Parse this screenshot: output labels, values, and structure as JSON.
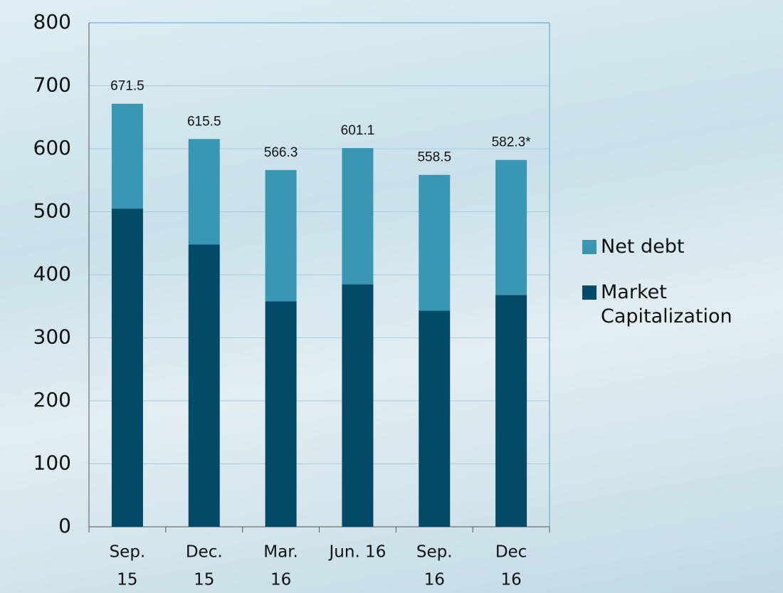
{
  "chart_data": {
    "type": "stacked_bar",
    "categories": [
      [
        "Sep.",
        "15"
      ],
      [
        "Dec.",
        "15"
      ],
      [
        "Mar.",
        "16"
      ],
      [
        "Jun. 16"
      ],
      [
        "Sep.",
        "16"
      ],
      [
        "Dec",
        "16"
      ]
    ],
    "series": [
      {
        "name": "Market Capitalization",
        "color": "#024a68",
        "values": [
          505,
          448,
          358,
          385,
          343,
          368
        ]
      },
      {
        "name": "Net debt",
        "color": "#3a97b3",
        "values": [
          166.5,
          167.5,
          208.3,
          216.1,
          215.5,
          214.3
        ]
      }
    ],
    "total_labels": [
      "671.5",
      "615.5",
      "566.3",
      "601.1",
      "558.5",
      "582.3*"
    ],
    "ylim": [
      0,
      800
    ],
    "yticks": [
      0,
      100,
      200,
      300,
      400,
      500,
      600,
      700,
      800
    ],
    "grid": true,
    "legend": "right"
  }
}
